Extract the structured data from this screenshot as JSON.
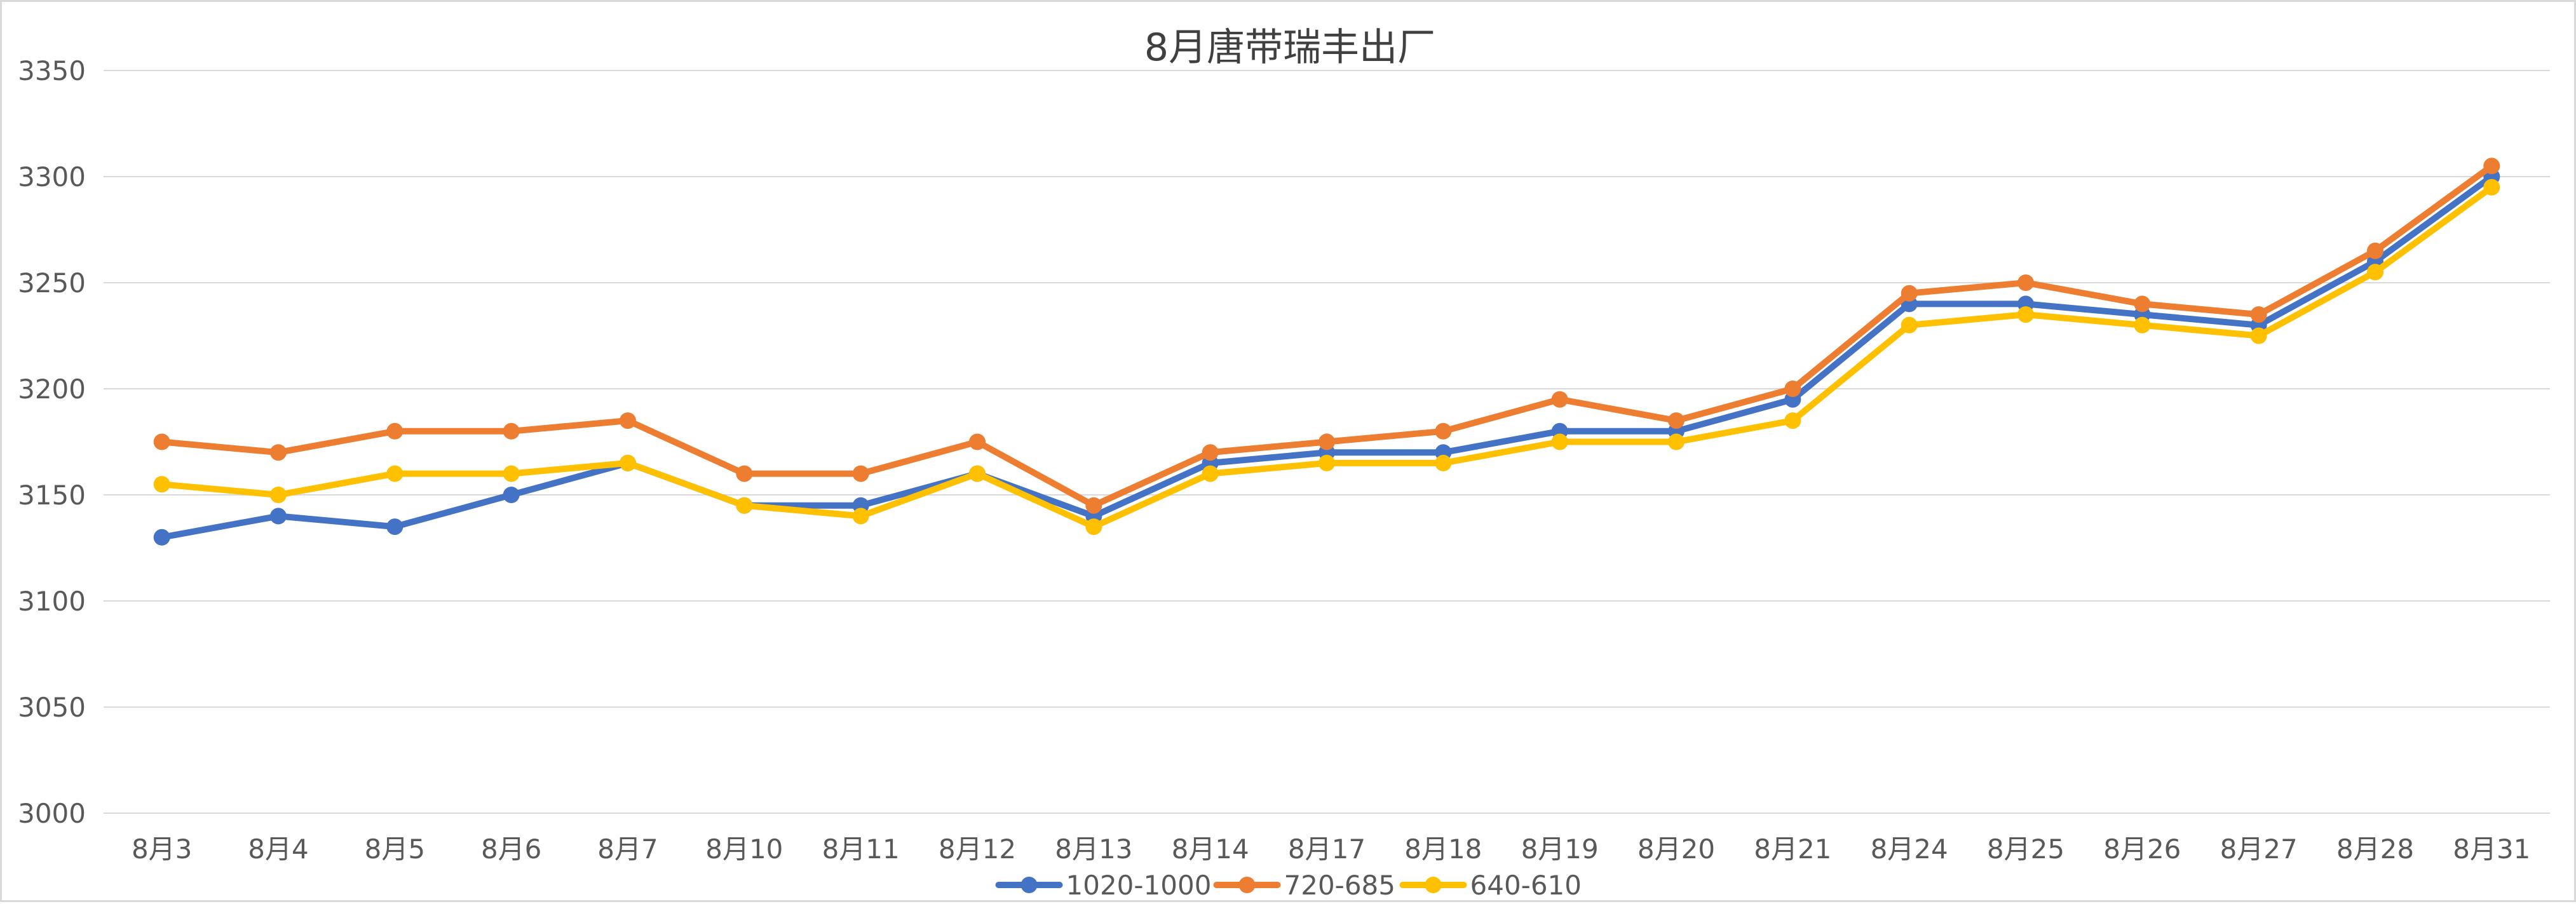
{
  "chart_data": {
    "type": "line",
    "title": "8月唐带瑞丰出厂",
    "xlabel": "",
    "ylabel": "",
    "categories": [
      "8月3",
      "8月4",
      "8月5",
      "8月6",
      "8月7",
      "8月10",
      "8月11",
      "8月12",
      "8月13",
      "8月14",
      "8月17",
      "8月18",
      "8月19",
      "8月20",
      "8月21",
      "8月24",
      "8月25",
      "8月26",
      "8月27",
      "8月28",
      "8月31"
    ],
    "ylim": [
      3000,
      3350
    ],
    "yticks": [
      3000,
      3050,
      3100,
      3150,
      3200,
      3250,
      3300,
      3350
    ],
    "grid": true,
    "legend_position": "bottom",
    "series": [
      {
        "name": "1020-1000",
        "color": "#4472C4",
        "values": [
          3130,
          3140,
          3135,
          3150,
          3165,
          3145,
          3145,
          3160,
          3140,
          3165,
          3170,
          3170,
          3180,
          3180,
          3195,
          3240,
          3240,
          3235,
          3230,
          3260,
          3300
        ]
      },
      {
        "name": "720-685",
        "color": "#ED7D31",
        "values": [
          3175,
          3170,
          3180,
          3180,
          3185,
          3160,
          3160,
          3175,
          3145,
          3170,
          3175,
          3180,
          3195,
          3185,
          3200,
          3245,
          3250,
          3240,
          3235,
          3265,
          3305
        ]
      },
      {
        "name": "640-610",
        "color": "#FFC000",
        "values": [
          3155,
          3150,
          3160,
          3160,
          3165,
          3145,
          3140,
          3160,
          3135,
          3160,
          3165,
          3165,
          3175,
          3175,
          3185,
          3230,
          3235,
          3230,
          3225,
          3255,
          3295
        ]
      }
    ]
  }
}
